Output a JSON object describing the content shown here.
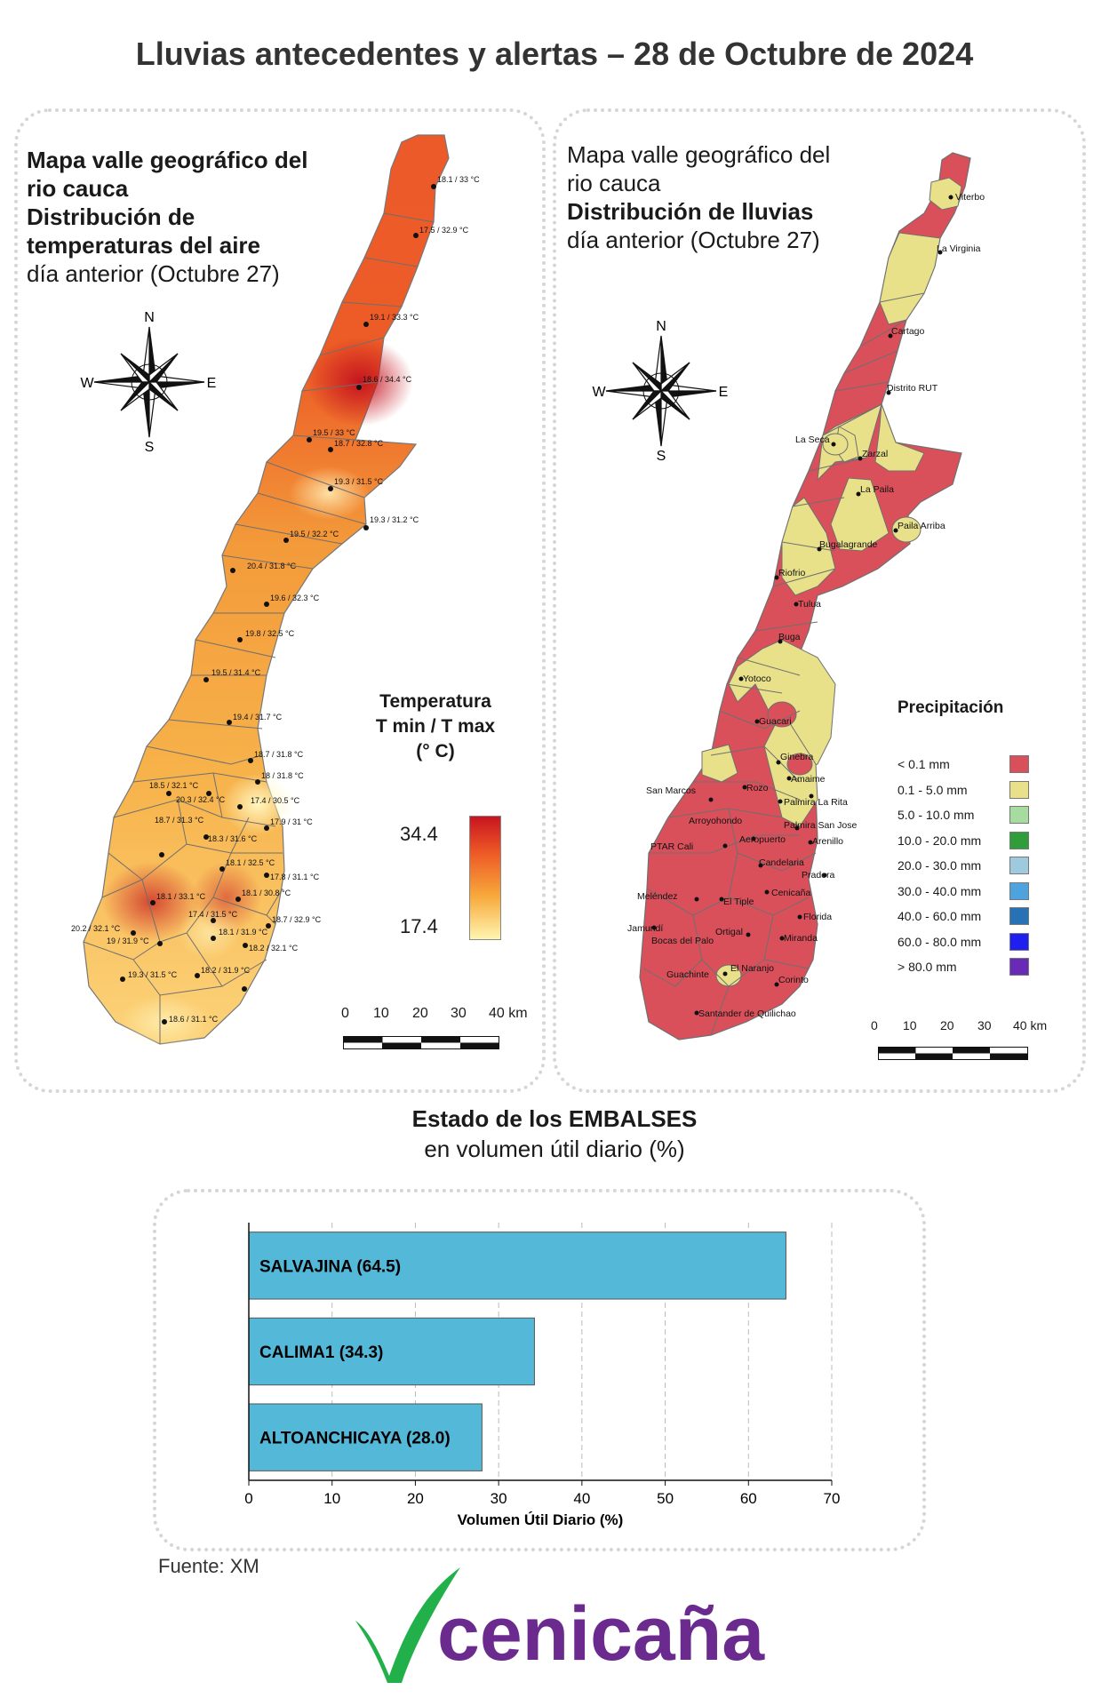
{
  "title": "Lluvias antecedentes y alertas – 28 de Octubre de 2024",
  "temp_map": {
    "title_line1": "Mapa valle geográfico del",
    "title_line2": "rio cauca",
    "title_bold1": "Distribución de",
    "title_bold2": "temperaturas del aire",
    "subtitle": "día anterior (Octubre 27)",
    "legend_title_1": "Temperatura",
    "legend_title_2": "T min / T max",
    "legend_title_3": "(° C)",
    "legend_max": "34.4",
    "legend_min": "17.4",
    "colors": {
      "min": "#fff5b0",
      "mid": "#f7a93b",
      "high": "#ee5a26",
      "max": "#c81420"
    },
    "stations": [
      "18.1 / 33 °C",
      "17.5 / 32.9 °C",
      "19.1 / 33.3 °C",
      "18.6 / 34.4 °C",
      "19.5 / 33 °C",
      "18.7 / 32.8 °C",
      "19.3 / 31.5 °C",
      "19.3 / 31.2 °C",
      "19.5 / 32.2 °C",
      "20.4 / 31.8 °C",
      "19.6 / 32.3 °C",
      "19.8 / 32.5 °C",
      "19.5 / 31.4 °C",
      "19.4 / 31.7 °C",
      "18.7 / 31.8 °C",
      "18 / 31.8 °C",
      "18.5 / 32.1 °C",
      "20.3 / 32.4 °C",
      "17.4 / 30.5 °C",
      "18.7 / 31.3 °C",
      "17.9 / 31 °C",
      "18.3 / 31.6 °C",
      "18.1 / 32.5 °C",
      "17.8 / 31.1 °C",
      "18.1 / 33.1 °C",
      "18.1 / 30.8 °C",
      "17.4 / 31.5 °C",
      "18.7 / 32.9 °C",
      "20.2 / 32.1 °C",
      "19 / 31.9 °C",
      "18.1 / 31.9 °C",
      "18.2 / 32.1 °C",
      "19.3 / 31.5 °C",
      "18.2 / 31.9 °C",
      "18.6 / 31.1 °C"
    ]
  },
  "rain_map": {
    "title_line1": "Mapa valle geográfico del",
    "title_line2": "rio cauca",
    "title_bold": "Distribución de lluvias",
    "subtitle": "día anterior (Octubre 27)",
    "legend_title": "Precipitación",
    "legend": [
      {
        "label": "< 0.1 mm",
        "color": "#d9505a"
      },
      {
        "label": "0.1 - 5.0 mm",
        "color": "#e8e18a"
      },
      {
        "label": "5.0 - 10.0 mm",
        "color": "#a6dca0"
      },
      {
        "label": "10.0 - 20.0 mm",
        "color": "#2f9e3a"
      },
      {
        "label": "20.0 - 30.0 mm",
        "color": "#9fc9df"
      },
      {
        "label": "30.0 - 40.0 mm",
        "color": "#4ea3df"
      },
      {
        "label": "40.0 - 60.0 mm",
        "color": "#2871b5"
      },
      {
        "label": "60.0 - 80.0 mm",
        "color": "#1f1ff0"
      },
      {
        "label": "> 80.0 mm",
        "color": "#6a2ab8"
      }
    ],
    "places": [
      "Viterbo",
      "La Virginia",
      "Cartago",
      "Distrito RUT",
      "La Seca",
      "Zarzal",
      "La Paila",
      "Paila Arriba",
      "Bugalagrande",
      "Riofrio",
      "Tulua",
      "Buga",
      "Yotoco",
      "Guacari",
      "Ginebra",
      "Amaime",
      "San Marcos",
      "Rozo",
      "Palmira La Rita",
      "Arroyohondo",
      "Palmira San Jose",
      "Arenillo",
      "PTAR Cali",
      "Aeropuerto",
      "Candelaria",
      "Pradera",
      "Meléndez",
      "El Tiple",
      "Cenicaña",
      "Florida",
      "Jamundí",
      "Bocas del Palo",
      "Ortigal",
      "Miranda",
      "Guachinte",
      "El Naranjo",
      "Corinto",
      "Santander de Quilichao"
    ]
  },
  "compass": {
    "n": "N",
    "s": "S",
    "e": "E",
    "w": "W"
  },
  "scale": {
    "labels": [
      "0",
      "10",
      "20",
      "30",
      "40 km"
    ]
  },
  "reservoirs": {
    "title": "Estado de los EMBALSES",
    "subtitle": "en volumen útil diario (%)",
    "source": "Fuente: XM"
  },
  "chart_data": {
    "type": "bar",
    "orientation": "horizontal",
    "categories": [
      "SALVAJINA",
      "CALIMA1",
      "ALTOANCHICAYA"
    ],
    "values": [
      64.5,
      34.3,
      28.0
    ],
    "bar_labels": [
      "SALVAJINA (64.5)",
      "CALIMA1 (34.3)",
      "ALTOANCHICAYA (28.0)"
    ],
    "xlabel": "Volumen Útil Diario (%)",
    "ylabel": "",
    "xlim": [
      0,
      70
    ],
    "xticks": [
      "0",
      "10",
      "20",
      "30",
      "40",
      "50",
      "60",
      "70"
    ],
    "grid": "vertical dashed",
    "bar_color": "#54b8d9"
  },
  "logo": {
    "text": "cenicaña",
    "colors": {
      "check": "#22b04b",
      "text": "#6b2b8e"
    }
  }
}
